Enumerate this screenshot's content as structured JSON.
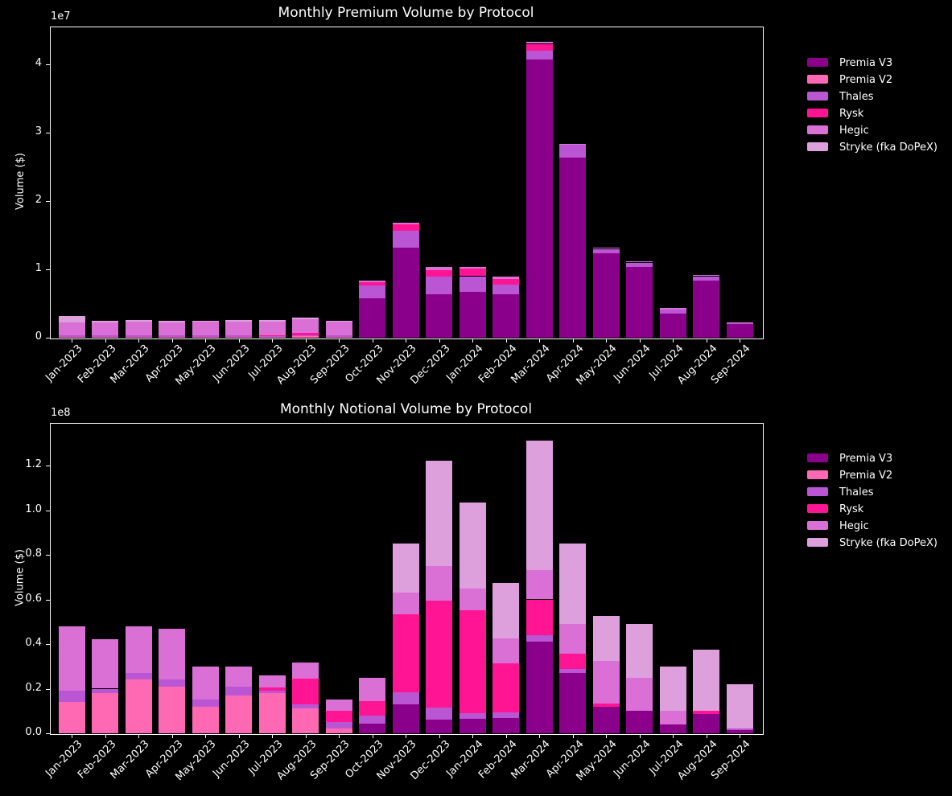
{
  "page": {
    "background": "#000000",
    "text_color": "#ffffff"
  },
  "protocols": [
    {
      "name": "Premia V3",
      "color": "#8B008B"
    },
    {
      "name": "Premia V2",
      "color": "#FF69B4"
    },
    {
      "name": "Thales",
      "color": "#BA55D3"
    },
    {
      "name": "Rysk",
      "color": "#FF1493"
    },
    {
      "name": "Hegic",
      "color": "#DA70D6"
    },
    {
      "name": "Stryke (fka DoPeX)",
      "color": "#DDA0DD"
    }
  ],
  "chart_data": [
    {
      "type": "bar",
      "stacked": true,
      "title": "Monthly Premium Volume by Protocol",
      "xlabel": "",
      "ylabel": "Volume ($)",
      "y_offset_label": "1e7",
      "value_units": "1e7 USD",
      "ylim": [
        0,
        4.55
      ],
      "ytick_values": [
        0,
        1,
        2,
        3,
        4
      ],
      "ytick_labels": [
        "0",
        "1",
        "2",
        "3",
        "4"
      ],
      "grid": false,
      "legend_position": "right of plot",
      "categories": [
        "Jan-2023",
        "Feb-2023",
        "Mar-2023",
        "Apr-2023",
        "May-2023",
        "Jun-2023",
        "Jul-2023",
        "Aug-2023",
        "Sep-2023",
        "Oct-2023",
        "Nov-2023",
        "Dec-2023",
        "Jan-2024",
        "Feb-2024",
        "Mar-2024",
        "Apr-2024",
        "May-2024",
        "Jun-2024",
        "Jul-2024",
        "Aug-2024",
        "Sep-2024"
      ],
      "series": [
        {
          "name": "Premia V3",
          "values": [
            0,
            0,
            0,
            0,
            0,
            0,
            0,
            0,
            0,
            0.58,
            1.32,
            0.64,
            0.67,
            0.64,
            4.07,
            2.64,
            1.24,
            1.03,
            0.35,
            0.84,
            0.2
          ]
        },
        {
          "name": "Premia V2",
          "values": [
            0.01,
            0.01,
            0.01,
            0.01,
            0.01,
            0.01,
            0.01,
            0.02,
            0.01,
            0,
            0,
            0,
            0,
            0,
            0,
            0,
            0,
            0,
            0,
            0,
            0
          ]
        },
        {
          "name": "Thales",
          "values": [
            0.03,
            0.02,
            0.02,
            0.02,
            0.02,
            0.02,
            0.02,
            0.02,
            0.02,
            0.18,
            0.24,
            0.25,
            0.23,
            0.14,
            0.13,
            0.18,
            0.06,
            0.07,
            0.06,
            0.06,
            0.01
          ]
        },
        {
          "name": "Rysk",
          "values": [
            0,
            0,
            0,
            0,
            0,
            0,
            0.01,
            0.03,
            0,
            0.05,
            0.1,
            0.1,
            0.11,
            0.08,
            0.1,
            0,
            0,
            0,
            0,
            0,
            0
          ]
        },
        {
          "name": "Hegic",
          "values": [
            0.18,
            0.19,
            0.2,
            0.19,
            0.2,
            0.21,
            0.2,
            0.2,
            0.2,
            0.02,
            0.02,
            0.04,
            0.02,
            0.03,
            0.03,
            0.02,
            0.02,
            0.02,
            0.02,
            0.02,
            0.01
          ]
        },
        {
          "name": "Stryke (fka DoPeX)",
          "values": [
            0.1,
            0.03,
            0.03,
            0.03,
            0.02,
            0.02,
            0.02,
            0.02,
            0.02,
            0,
            0,
            0,
            0,
            0,
            0,
            0,
            0,
            0,
            0,
            0,
            0
          ]
        }
      ],
      "legend": [
        "Premia V3",
        "Premia V2",
        "Thales",
        "Rysk",
        "Hegic",
        "Stryke (fka DoPeX)"
      ]
    },
    {
      "type": "bar",
      "stacked": true,
      "title": "Monthly Notional Volume by Protocol",
      "xlabel": "",
      "ylabel": "Volume ($)",
      "y_offset_label": "1e8",
      "value_units": "1e8 USD",
      "ylim": [
        0,
        1.39
      ],
      "ytick_values": [
        0,
        0.2,
        0.4,
        0.6,
        0.8,
        1.0,
        1.2
      ],
      "ytick_labels": [
        "0.0",
        "0.2",
        "0.4",
        "0.6",
        "0.8",
        "1.0",
        "1.2"
      ],
      "grid": false,
      "legend_position": "right of plot",
      "categories": [
        "Jan-2023",
        "Feb-2023",
        "Mar-2023",
        "Apr-2023",
        "May-2023",
        "Jun-2023",
        "Jul-2023",
        "Aug-2023",
        "Sep-2023",
        "Oct-2023",
        "Nov-2023",
        "Dec-2023",
        "Jan-2024",
        "Feb-2024",
        "Mar-2024",
        "Apr-2024",
        "May-2024",
        "Jun-2024",
        "Jul-2024",
        "Aug-2024",
        "Sep-2024"
      ],
      "series": [
        {
          "name": "Premia V3",
          "values": [
            0,
            0,
            0,
            0,
            0,
            0,
            0,
            0,
            0,
            0.045,
            0.13,
            0.06,
            0.065,
            0.07,
            0.41,
            0.27,
            0.12,
            0.1,
            0.04,
            0.085,
            0.015
          ]
        },
        {
          "name": "Premia V2",
          "values": [
            0.14,
            0.18,
            0.24,
            0.21,
            0.12,
            0.17,
            0.18,
            0.11,
            0.02,
            0,
            0,
            0,
            0,
            0,
            0,
            0,
            0,
            0,
            0,
            0,
            0
          ]
        },
        {
          "name": "Thales",
          "values": [
            0.05,
            0.02,
            0.03,
            0.03,
            0.03,
            0.04,
            0.01,
            0.02,
            0.03,
            0.035,
            0.055,
            0.055,
            0.025,
            0.025,
            0.03,
            0.02,
            0,
            0,
            0,
            0,
            0.005
          ]
        },
        {
          "name": "Rysk",
          "values": [
            0,
            0,
            0,
            0,
            0,
            0,
            0.015,
            0.115,
            0.05,
            0.065,
            0.35,
            0.48,
            0.46,
            0.22,
            0.16,
            0.065,
            0.015,
            0,
            0,
            0.015,
            0
          ]
        },
        {
          "name": "Hegic",
          "values": [
            0.29,
            0.22,
            0.21,
            0.23,
            0.15,
            0.09,
            0.055,
            0.072,
            0.05,
            0.105,
            0.095,
            0.155,
            0.1,
            0.11,
            0.13,
            0.135,
            0.19,
            0.15,
            0.06,
            0,
            0
          ]
        },
        {
          "name": "Stryke (fka DoPeX)",
          "values": [
            0,
            0,
            0,
            0,
            0,
            0,
            0,
            0,
            0,
            0,
            0.22,
            0.47,
            0.385,
            0.25,
            0.58,
            0.36,
            0.2,
            0.24,
            0.2,
            0.275,
            0.2
          ]
        }
      ],
      "legend": [
        "Premia V3",
        "Premia V2",
        "Thales",
        "Rysk",
        "Hegic",
        "Stryke (fka DoPeX)"
      ]
    }
  ]
}
